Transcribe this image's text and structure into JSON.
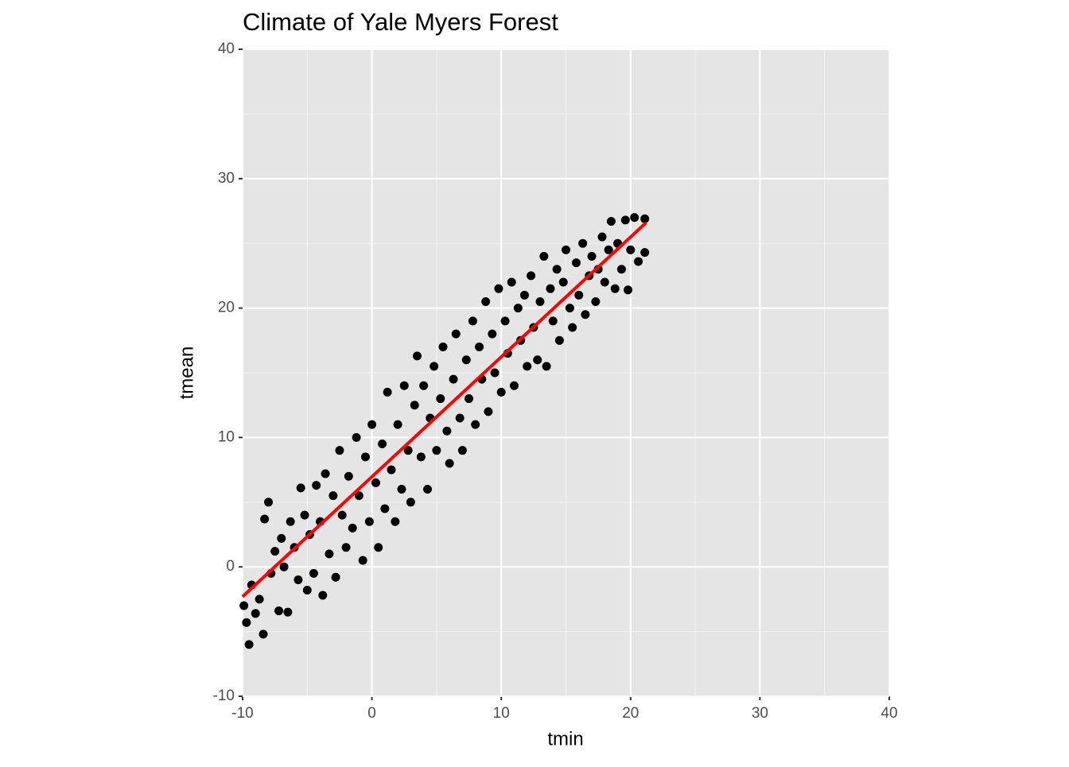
{
  "chart_data": {
    "type": "scatter",
    "title": "Climate of Yale Myers Forest",
    "x_label": "tmin",
    "y_label": "tmean",
    "xlim": [
      -10,
      40
    ],
    "ylim": [
      -10,
      40
    ],
    "xticks": [
      -10,
      0,
      10,
      20,
      30,
      40
    ],
    "yticks": [
      -10,
      0,
      10,
      20,
      30,
      40
    ],
    "minor_xticks": [
      -5,
      5,
      15,
      25,
      35
    ],
    "minor_yticks": [
      -5,
      5,
      15,
      25,
      35
    ],
    "grid": true,
    "background": "#e5e5e5",
    "points": {
      "color": "#000000",
      "x": [
        -9.9,
        -9.7,
        -9.5,
        -9.3,
        -9.0,
        -8.7,
        -8.4,
        -8.3,
        -8.0,
        -7.8,
        -7.5,
        -7.2,
        -7.0,
        -6.8,
        -6.5,
        -6.3,
        -6.0,
        -5.7,
        -5.5,
        -5.2,
        -5.0,
        -4.8,
        -4.5,
        -4.3,
        -4.0,
        -3.8,
        -3.6,
        -3.3,
        -3.0,
        -2.8,
        -2.5,
        -2.3,
        -2.0,
        -1.8,
        -1.5,
        -1.2,
        -1.0,
        -0.7,
        -0.5,
        -0.2,
        0.0,
        0.3,
        0.5,
        0.8,
        1.0,
        1.2,
        1.5,
        1.8,
        2.0,
        2.3,
        2.5,
        2.8,
        3.0,
        3.3,
        3.5,
        3.8,
        4.0,
        4.3,
        4.5,
        4.8,
        5.0,
        5.3,
        5.5,
        5.8,
        6.0,
        6.3,
        6.5,
        6.8,
        7.0,
        7.3,
        7.5,
        7.8,
        8.0,
        8.3,
        8.5,
        8.8,
        9.0,
        9.3,
        9.5,
        9.8,
        10.0,
        10.3,
        10.5,
        10.8,
        11.0,
        11.3,
        11.5,
        11.8,
        12.0,
        12.3,
        12.5,
        12.8,
        13.0,
        13.3,
        13.5,
        13.8,
        14.0,
        14.3,
        14.5,
        14.8,
        15.0,
        15.3,
        15.5,
        15.8,
        16.0,
        16.3,
        16.5,
        16.8,
        17.0,
        17.3,
        17.5,
        17.8,
        18.0,
        18.3,
        18.5,
        18.8,
        19.0,
        19.3,
        19.6,
        19.8,
        20.0,
        20.3,
        20.6,
        21.1,
        21.1
      ],
      "values": [
        -3.0,
        -4.3,
        -6.0,
        -1.4,
        -3.6,
        -2.5,
        -5.2,
        3.7,
        5.0,
        -0.5,
        1.2,
        -3.4,
        2.2,
        0.0,
        -3.5,
        3.5,
        1.5,
        -1.0,
        6.1,
        4.0,
        -1.8,
        2.5,
        -0.5,
        6.3,
        3.5,
        -2.2,
        7.2,
        1.0,
        5.5,
        -0.8,
        9.0,
        4.0,
        1.5,
        7.0,
        3.0,
        10.0,
        5.5,
        0.5,
        8.5,
        3.5,
        11.0,
        6.5,
        1.5,
        9.5,
        4.5,
        13.5,
        7.5,
        3.5,
        11.0,
        6.0,
        14.0,
        9.0,
        5.0,
        12.5,
        16.3,
        8.5,
        14.0,
        6.0,
        11.5,
        15.5,
        9.0,
        13.0,
        17.0,
        10.5,
        8.0,
        14.5,
        18.0,
        11.5,
        9.0,
        16.0,
        13.0,
        19.0,
        11.0,
        17.0,
        14.5,
        20.5,
        12.0,
        18.0,
        15.0,
        21.5,
        13.5,
        19.0,
        16.5,
        22.0,
        14.0,
        20.0,
        17.5,
        21.0,
        15.5,
        22.5,
        18.5,
        16.0,
        20.5,
        24.0,
        15.5,
        21.5,
        19.0,
        23.0,
        17.5,
        22.0,
        24.5,
        20.0,
        18.5,
        23.5,
        21.0,
        25.0,
        19.5,
        22.5,
        24.0,
        20.5,
        23.0,
        25.5,
        22.0,
        24.5,
        26.7,
        21.5,
        25.0,
        23.0,
        26.8,
        21.4,
        24.5,
        27.0,
        23.6,
        26.9,
        24.3
      ]
    },
    "fit": {
      "color": "#ff0000",
      "x": [
        -10,
        21.2
      ],
      "values": [
        -2.3,
        26.6
      ]
    }
  }
}
